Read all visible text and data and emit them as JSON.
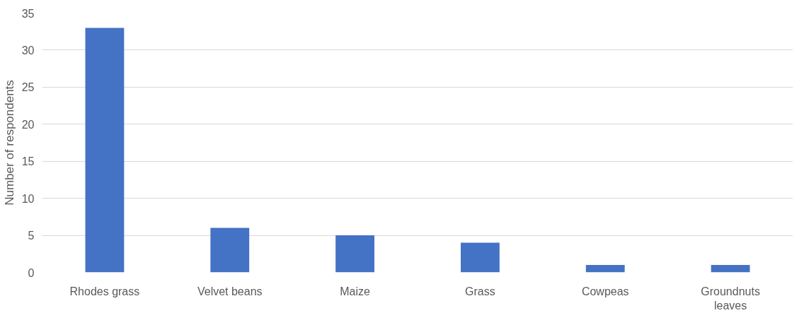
{
  "chart_data": {
    "type": "bar",
    "ylabel": "Number of respondents",
    "categories": [
      "Rhodes grass",
      "Velvet beans",
      "Maize",
      "Grass",
      "Cowpeas",
      "Groundnuts leaves"
    ],
    "values": [
      33,
      6,
      5,
      4,
      1,
      1
    ],
    "color": "#4472c4",
    "ylim": [
      0,
      35
    ],
    "yticks": [
      0,
      5,
      10,
      15,
      20,
      25,
      30,
      35
    ],
    "grid": "y"
  }
}
